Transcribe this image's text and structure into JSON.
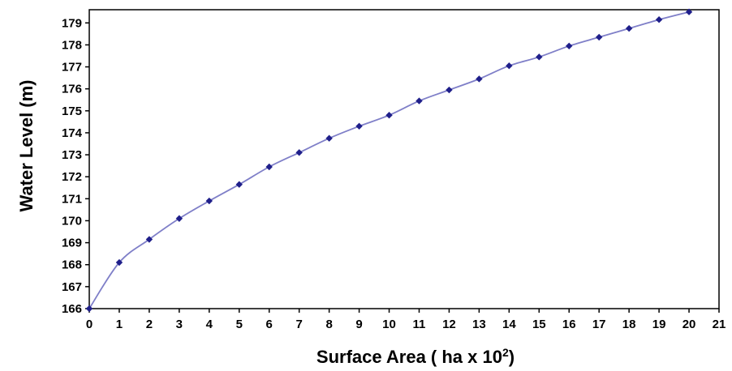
{
  "chart_data": {
    "type": "line",
    "title": "",
    "xlabel": "Surface Area ( ha  x 10",
    "xlabel_superscript": "2",
    "xlabel_close": ")",
    "ylabel": "Water Level (m)",
    "xlim": [
      0,
      21
    ],
    "ylim": [
      166,
      179.6
    ],
    "x_ticks": [
      "0",
      "1",
      "2",
      "3",
      "4",
      "5",
      "6",
      "7",
      "8",
      "9",
      "10",
      "11",
      "12",
      "13",
      "14",
      "15",
      "16",
      "17",
      "18",
      "19",
      "20",
      "21"
    ],
    "y_ticks": [
      "166",
      "167",
      "168",
      "169",
      "170",
      "171",
      "172",
      "173",
      "174",
      "175",
      "176",
      "177",
      "178",
      "179"
    ],
    "grid": false,
    "legend": "none",
    "series": [
      {
        "x": [
          0,
          1,
          2,
          3,
          4,
          5,
          6,
          7,
          8,
          9,
          10,
          11,
          12,
          13,
          14,
          15,
          16,
          17,
          18,
          19,
          20
        ],
        "values": [
          166.0,
          168.1,
          169.15,
          170.1,
          170.9,
          171.65,
          172.45,
          173.1,
          173.75,
          174.3,
          174.8,
          175.45,
          175.95,
          176.45,
          177.05,
          177.45,
          177.95,
          178.35,
          178.75,
          179.15,
          179.5
        ],
        "color": "#7f7fc8",
        "marker_color": "#1f1f8a"
      }
    ]
  }
}
